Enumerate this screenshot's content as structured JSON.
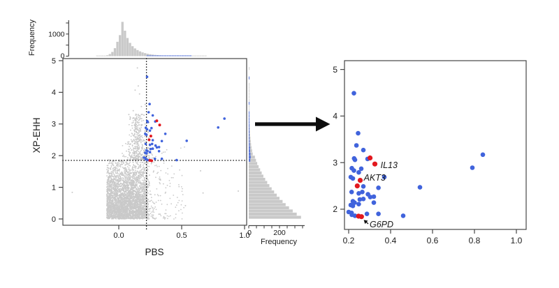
{
  "figure": {
    "description": "Two-panel selection scan: PBS vs XP-EHH scatter with marginal frequency histograms and dotted significance thresholds; arrow to zoomed panel of outlier SNPs with candidate genes highlighted",
    "colors": {
      "background": "#ffffff",
      "blue_point": "#4063DC",
      "red_point": "#E2181E",
      "gray_point": "#C0C0C0",
      "hist_fill": "#C9C9C9",
      "axis_line": "#454545",
      "threshold_line": "#111111",
      "arrow": "#0d0d0d",
      "text": "#1a1a1a"
    }
  },
  "chart_data": {
    "type": "scatter",
    "selected_points": [
      [
        0.225,
        4.49
      ],
      [
        0.245,
        3.63
      ],
      [
        0.237,
        3.37
      ],
      [
        0.27,
        3.27
      ],
      [
        0.226,
        3.09
      ],
      [
        0.23,
        3.06
      ],
      [
        0.29,
        3.08
      ],
      [
        0.215,
        2.88
      ],
      [
        0.225,
        2.83
      ],
      [
        0.26,
        2.87
      ],
      [
        0.248,
        2.79
      ],
      [
        0.21,
        2.69
      ],
      [
        0.22,
        2.66
      ],
      [
        0.37,
        2.69
      ],
      [
        0.342,
        2.46
      ],
      [
        0.54,
        2.47
      ],
      [
        0.27,
        2.49
      ],
      [
        0.214,
        2.37
      ],
      [
        0.248,
        2.34
      ],
      [
        0.265,
        2.37
      ],
      [
        0.292,
        2.32
      ],
      [
        0.303,
        2.26
      ],
      [
        0.32,
        2.27
      ],
      [
        0.253,
        2.21
      ],
      [
        0.27,
        2.22
      ],
      [
        0.22,
        2.17
      ],
      [
        0.228,
        2.14
      ],
      [
        0.21,
        2.09
      ],
      [
        0.22,
        2.07
      ],
      [
        0.248,
        2.11
      ],
      [
        0.32,
        2.14
      ],
      [
        0.2,
        1.94
      ],
      [
        0.214,
        1.92
      ],
      [
        0.287,
        1.9
      ],
      [
        0.342,
        1.9
      ],
      [
        0.23,
        1.86
      ],
      [
        0.215,
        1.88
      ],
      [
        0.46,
        1.86
      ],
      [
        0.79,
        2.89
      ],
      [
        0.84,
        3.17
      ]
    ],
    "gene_points": [
      [
        0.302,
        3.1
      ],
      [
        0.325,
        2.97
      ],
      [
        0.255,
        2.62
      ],
      [
        0.241,
        2.5
      ],
      [
        0.247,
        1.85
      ],
      [
        0.261,
        1.84
      ]
    ],
    "gene_labels": [
      {
        "text": "IL13",
        "x": 0.352,
        "y": 2.94,
        "italic": true,
        "has_arrow": false
      },
      {
        "text": "AKT3",
        "x": 0.272,
        "y": 2.67,
        "italic": true,
        "has_arrow": false
      },
      {
        "text": "G6PD",
        "x": 0.3,
        "y": 1.67,
        "italic": true,
        "has_arrow": true,
        "arrow_to": [
          0.262,
          1.83
        ]
      }
    ],
    "left_panel": {
      "xlabel": "PBS",
      "ylabel": "XP-EHH",
      "xlim": [
        -0.444,
        1.017
      ],
      "ylim": [
        -0.2,
        5.07
      ],
      "x_tick_values": [
        0.0,
        0.5,
        1.0
      ],
      "x_tick_labels": [
        "0.0",
        "0.5",
        "1.0"
      ],
      "y_tick_values": [
        0,
        1,
        2,
        3,
        4,
        5
      ],
      "y_tick_labels": [
        "0",
        "1",
        "2",
        "3",
        "4",
        "5"
      ],
      "threshold_pbs": 0.22,
      "threshold_xpehh": 1.85,
      "grid": false,
      "top_histogram": {
        "axis_label": "Frequency",
        "tick_values": [
          0,
          1000
        ],
        "tick_labels": [
          "0",
          "1000"
        ],
        "minor_tick_values": [
          500,
          1500
        ],
        "bin_start": -0.2,
        "bin_width": 0.02,
        "values": [
          0,
          1,
          2,
          5,
          14,
          40,
          95,
          190,
          360,
          650,
          950,
          1550,
          1150,
          820,
          600,
          450,
          350,
          275,
          215,
          170,
          135,
          108,
          86,
          69,
          55,
          44,
          35,
          28,
          22,
          18,
          15,
          12,
          10,
          8,
          7,
          6,
          5,
          4,
          4,
          3,
          3,
          2,
          2,
          2,
          1
        ],
        "blue_bin_start": 0.22,
        "blue_values": [
          10,
          14,
          12,
          9,
          7,
          5,
          4,
          3,
          2,
          2,
          1,
          1,
          1,
          1,
          1,
          1,
          1,
          1
        ]
      },
      "right_histogram": {
        "axis_label": "Frequency",
        "tick_values": [
          0,
          200
        ],
        "tick_labels": [
          "0",
          "200"
        ],
        "minor_tick_step": 50,
        "minor_tick_max": 350,
        "bin_start": 0,
        "bin_width": 0.1,
        "values": [
          340,
          312,
          286,
          262,
          240,
          220,
          200,
          182,
          165,
          149,
          134,
          120,
          107,
          95,
          84,
          74,
          64,
          55,
          47,
          40,
          26,
          22,
          18,
          15,
          13,
          11,
          9,
          8,
          7,
          6,
          5,
          4,
          3,
          3,
          2,
          2,
          2,
          1,
          1,
          1,
          1,
          1,
          1,
          0,
          1,
          0,
          0,
          1,
          0,
          0
        ],
        "blue_bin_start": 1.8,
        "blue_values": [
          10,
          13,
          11,
          9,
          8,
          6,
          5,
          4,
          3,
          2,
          2,
          2,
          1,
          1,
          1,
          1,
          0,
          0,
          1,
          0,
          0,
          0,
          0,
          0,
          0,
          0,
          1
        ]
      },
      "background_cloud": {
        "note": "dense gray SNP cloud, rendered procedurally from these parameters",
        "n_core": 3600,
        "core_x": {
          "dist": "uniform",
          "min": -0.095,
          "max": 0.225
        },
        "core_y": {
          "dist": "half_normal",
          "sigma": 0.85,
          "max": 1.87
        },
        "n_column": 420,
        "column_x": {
          "dist": "normal",
          "mean": 0.148,
          "sigma": 0.05,
          "min": 0.0,
          "max": 0.28
        },
        "column_y": {
          "dist": "power",
          "min": 1.87,
          "range": 1.45,
          "exp": 2.0
        },
        "n_right_tail": 230,
        "tail_x": {
          "dist": "power",
          "min": 0.225,
          "range": 0.3,
          "exp": 2.6
        },
        "tail_y": {
          "dist": "power",
          "min": 0,
          "range": 2.3,
          "exp": 1.6
        },
        "outlier_points": [
          [
            -0.37,
            0.84
          ],
          [
            0.95,
            0.88
          ],
          [
            0.67,
            0.82
          ],
          [
            0.65,
            1.52
          ],
          [
            0.53,
            0.42
          ],
          [
            0.148,
            4.77
          ],
          [
            0.155,
            4.2
          ],
          [
            0.13,
            4.07
          ],
          [
            0.165,
            3.95
          ],
          [
            0.21,
            3.62
          ],
          [
            0.18,
            3.55
          ],
          [
            0.115,
            3.42
          ],
          [
            0.08,
            3.3
          ],
          [
            0.2,
            3.28
          ],
          [
            0.24,
            3.05
          ],
          [
            0.105,
            2.95
          ]
        ]
      }
    },
    "right_panel": {
      "xlabel": "",
      "ylabel": "",
      "xlim": [
        0.18,
        1.047
      ],
      "ylim": [
        1.57,
        5.19
      ],
      "x_tick_values": [
        0.2,
        0.4,
        0.6,
        0.8,
        1.0
      ],
      "x_tick_labels": [
        "0.2",
        "0.4",
        "0.6",
        "0.8",
        "1.0"
      ],
      "y_tick_values": [
        2,
        3,
        4,
        5
      ],
      "y_tick_labels": [
        "2",
        "3",
        "4",
        "5"
      ],
      "grid": false
    }
  }
}
